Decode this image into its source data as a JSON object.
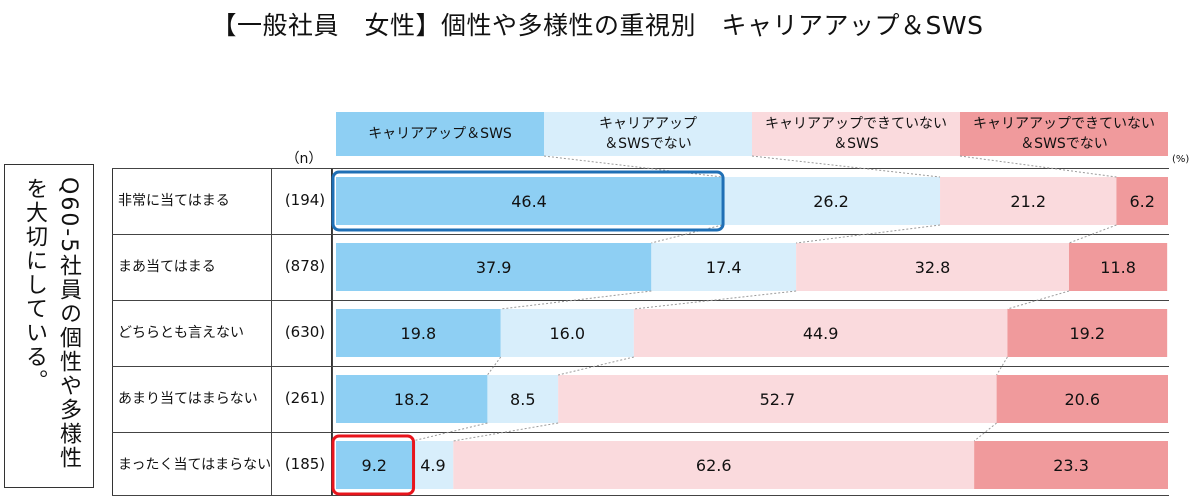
{
  "title": "【一般社員　女性】個性や多様性の重視別　キャリアアップ＆SWS",
  "question": "Q60-5社員の個性や多様性を大切にしている。",
  "n_header": "（n）",
  "unit": "(%)",
  "colors": {
    "series": [
      "#8ecff3",
      "#d8eefb",
      "#fadadd",
      "#f09a9c"
    ],
    "highlight_blue": "#1f6fb5",
    "highlight_red": "#e8141c",
    "connector": "#9a9a9a"
  },
  "chart_data": {
    "type": "bar",
    "orientation": "horizontal",
    "stacked": true,
    "percent": true,
    "title": "【一般社員　女性】個性や多様性の重視別　キャリアアップ＆SWS",
    "categories": [
      "非常に当てはまる",
      "まあ当てはまる",
      "どちらとも言えない",
      "あまり当てはまらない",
      "まったく当てはまらない"
    ],
    "n": [
      "(194)",
      "(878)",
      "(630)",
      "(261)",
      "(185)"
    ],
    "series": [
      {
        "name": "キャリアアップ＆SWS",
        "values": [
          46.4,
          37.9,
          19.8,
          18.2,
          9.2
        ]
      },
      {
        "name": "キャリアアップ\n＆SWSでない",
        "values": [
          26.2,
          17.4,
          16.0,
          8.5,
          4.9
        ]
      },
      {
        "name": "キャリアアップできていない\n＆SWS",
        "values": [
          21.2,
          32.8,
          44.9,
          52.7,
          62.6
        ]
      },
      {
        "name": "キャリアアップできていない\n＆SWSでない",
        "values": [
          6.2,
          11.8,
          19.2,
          20.6,
          23.3
        ]
      }
    ],
    "xlim": [
      0,
      100
    ],
    "legend": "top",
    "highlights": [
      {
        "category": "非常に当てはまる",
        "series": "キャリアアップ＆SWS",
        "color": "blue"
      },
      {
        "category": "まったく当てはまらない",
        "series": "キャリアアップ＆SWS",
        "color": "red"
      }
    ]
  }
}
